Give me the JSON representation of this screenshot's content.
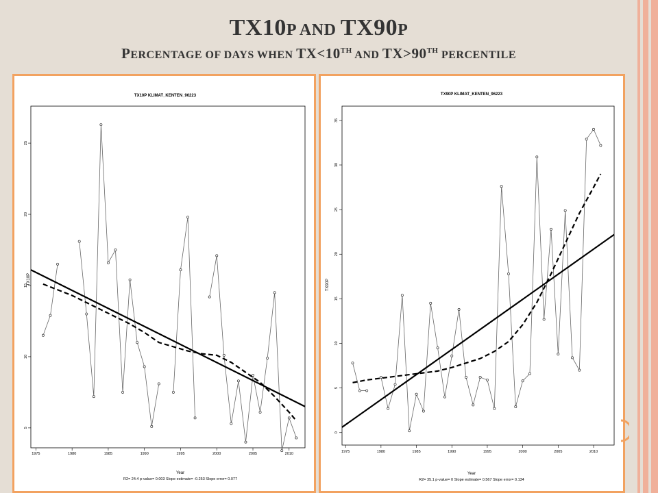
{
  "header": {
    "title_tx10": "TX10",
    "title_p1": "P",
    "title_and": " AND ",
    "title_tx90": "TX90",
    "title_p2": "P",
    "subtitle_first": "P",
    "subtitle_rest": "ERCENTAGE OF DAYS WHEN ",
    "subtitle_tx1": "TX<10",
    "subtitle_th1": "TH",
    "subtitle_and": " AND ",
    "subtitle_tx2": "TX>90",
    "subtitle_th2": "TH",
    "subtitle_end": " PERCENTILE"
  },
  "colors": {
    "background": "#e5ded5",
    "panel_border": "#f2a260",
    "edge_stripe": "#f0b09a"
  },
  "chart_data": [
    {
      "type": "line",
      "title": "TX10P  KLIMAT_KENTEN_96223",
      "xlabel": "Year",
      "ylabel": "TX10P",
      "xlim": [
        1974.3,
        2012.2
      ],
      "ylim": [
        3.6,
        27.6
      ],
      "xticks": [
        1975,
        1980,
        1985,
        1990,
        1995,
        2000,
        2005,
        2010
      ],
      "yticks": [
        5,
        10,
        15,
        20,
        25
      ],
      "x": [
        1976,
        1977,
        1978,
        1979,
        1980,
        1981,
        1982,
        1983,
        1984,
        1985,
        1986,
        1987,
        1988,
        1989,
        1990,
        1991,
        1992,
        1993,
        1994,
        1995,
        1996,
        1997,
        1998,
        1999,
        2000,
        2001,
        2002,
        2003,
        2004,
        2005,
        2006,
        2007,
        2008,
        2009,
        2010,
        2011
      ],
      "series": [
        {
          "values": [
            11.5,
            12.9,
            16.5,
            null,
            null,
            18.1,
            13,
            7.2,
            26.3,
            16.6,
            17.5,
            7.5,
            15.4,
            11,
            9.3,
            5.1,
            8.1,
            null,
            7.5,
            16.1,
            19.8,
            5.7,
            null,
            14.2,
            17.1,
            10.1,
            5.3,
            8.3,
            4,
            8.7,
            6.1,
            9.9,
            14.5,
            3.4,
            5.7,
            4.3
          ]
        }
      ],
      "trend": {
        "x": [
          1974.3,
          2012.2
        ],
        "y": [
          16.1,
          6.5
        ]
      },
      "smooth": {
        "x": [
          1976,
          1978,
          1980,
          1982,
          1984,
          1986,
          1988,
          1990,
          1992,
          1994,
          1996,
          1998,
          2000,
          2002,
          2004,
          2006,
          2008,
          2010,
          2011
        ],
        "y": [
          15.1,
          14.7,
          14.3,
          13.8,
          13.3,
          12.8,
          12.3,
          11.7,
          11.0,
          10.7,
          10.4,
          10.2,
          10.1,
          9.6,
          8.9,
          8.2,
          7.2,
          6.1,
          5.5
        ]
      },
      "stats": "R2= 24.4  p-value= 0.003  Slope estimate= -0.253  Slope error= 0.077"
    },
    {
      "type": "line",
      "title": "TX90P  KLIMAT_KENTEN_96223",
      "xlabel": "Year",
      "ylabel": "TX90P",
      "xlim": [
        1974.5,
        2012.9
      ],
      "ylim": [
        -1.4,
        36.6
      ],
      "xticks": [
        1975,
        1980,
        1985,
        1990,
        1995,
        2000,
        2005,
        2010
      ],
      "yticks": [
        0,
        5,
        10,
        15,
        20,
        25,
        30,
        35
      ],
      "x": [
        1976,
        1977,
        1978,
        1979,
        1980,
        1981,
        1982,
        1983,
        1984,
        1985,
        1986,
        1987,
        1988,
        1989,
        1990,
        1991,
        1992,
        1993,
        1994,
        1995,
        1996,
        1997,
        1998,
        1999,
        2000,
        2001,
        2002,
        2003,
        2004,
        2005,
        2006,
        2007,
        2008,
        2009,
        2010,
        2011
      ],
      "series": [
        {
          "values": [
            7.8,
            4.7,
            4.7,
            null,
            6.2,
            2.7,
            5.4,
            15.4,
            0.2,
            4.3,
            2.4,
            14.5,
            9.5,
            4,
            8.6,
            13.8,
            6.2,
            3.1,
            6.2,
            5.9,
            2.7,
            27.6,
            17.8,
            2.9,
            5.8,
            6.6,
            30.9,
            12.7,
            22.8,
            8.8,
            24.9,
            8.4,
            7,
            32.9,
            34,
            32.2
          ]
        }
      ],
      "trend": {
        "x": [
          1974.5,
          2012.9
        ],
        "y": [
          0.6,
          22.2
        ]
      },
      "smooth": {
        "x": [
          1976,
          1978,
          1980,
          1982,
          1984,
          1986,
          1988,
          1990,
          1992,
          1994,
          1996,
          1998,
          2000,
          2002,
          2004,
          2006,
          2008,
          2010,
          2011
        ],
        "y": [
          5.6,
          5.9,
          6.1,
          6.3,
          6.5,
          6.7,
          6.9,
          7.3,
          7.8,
          8.3,
          9.1,
          10.2,
          12.1,
          14.6,
          17.8,
          21.2,
          24.6,
          27.5,
          29.0
        ]
      },
      "stats": "R2= 35.1  p-value= 0  Slope estimate= 0.567  Slope error= 0.134"
    }
  ]
}
